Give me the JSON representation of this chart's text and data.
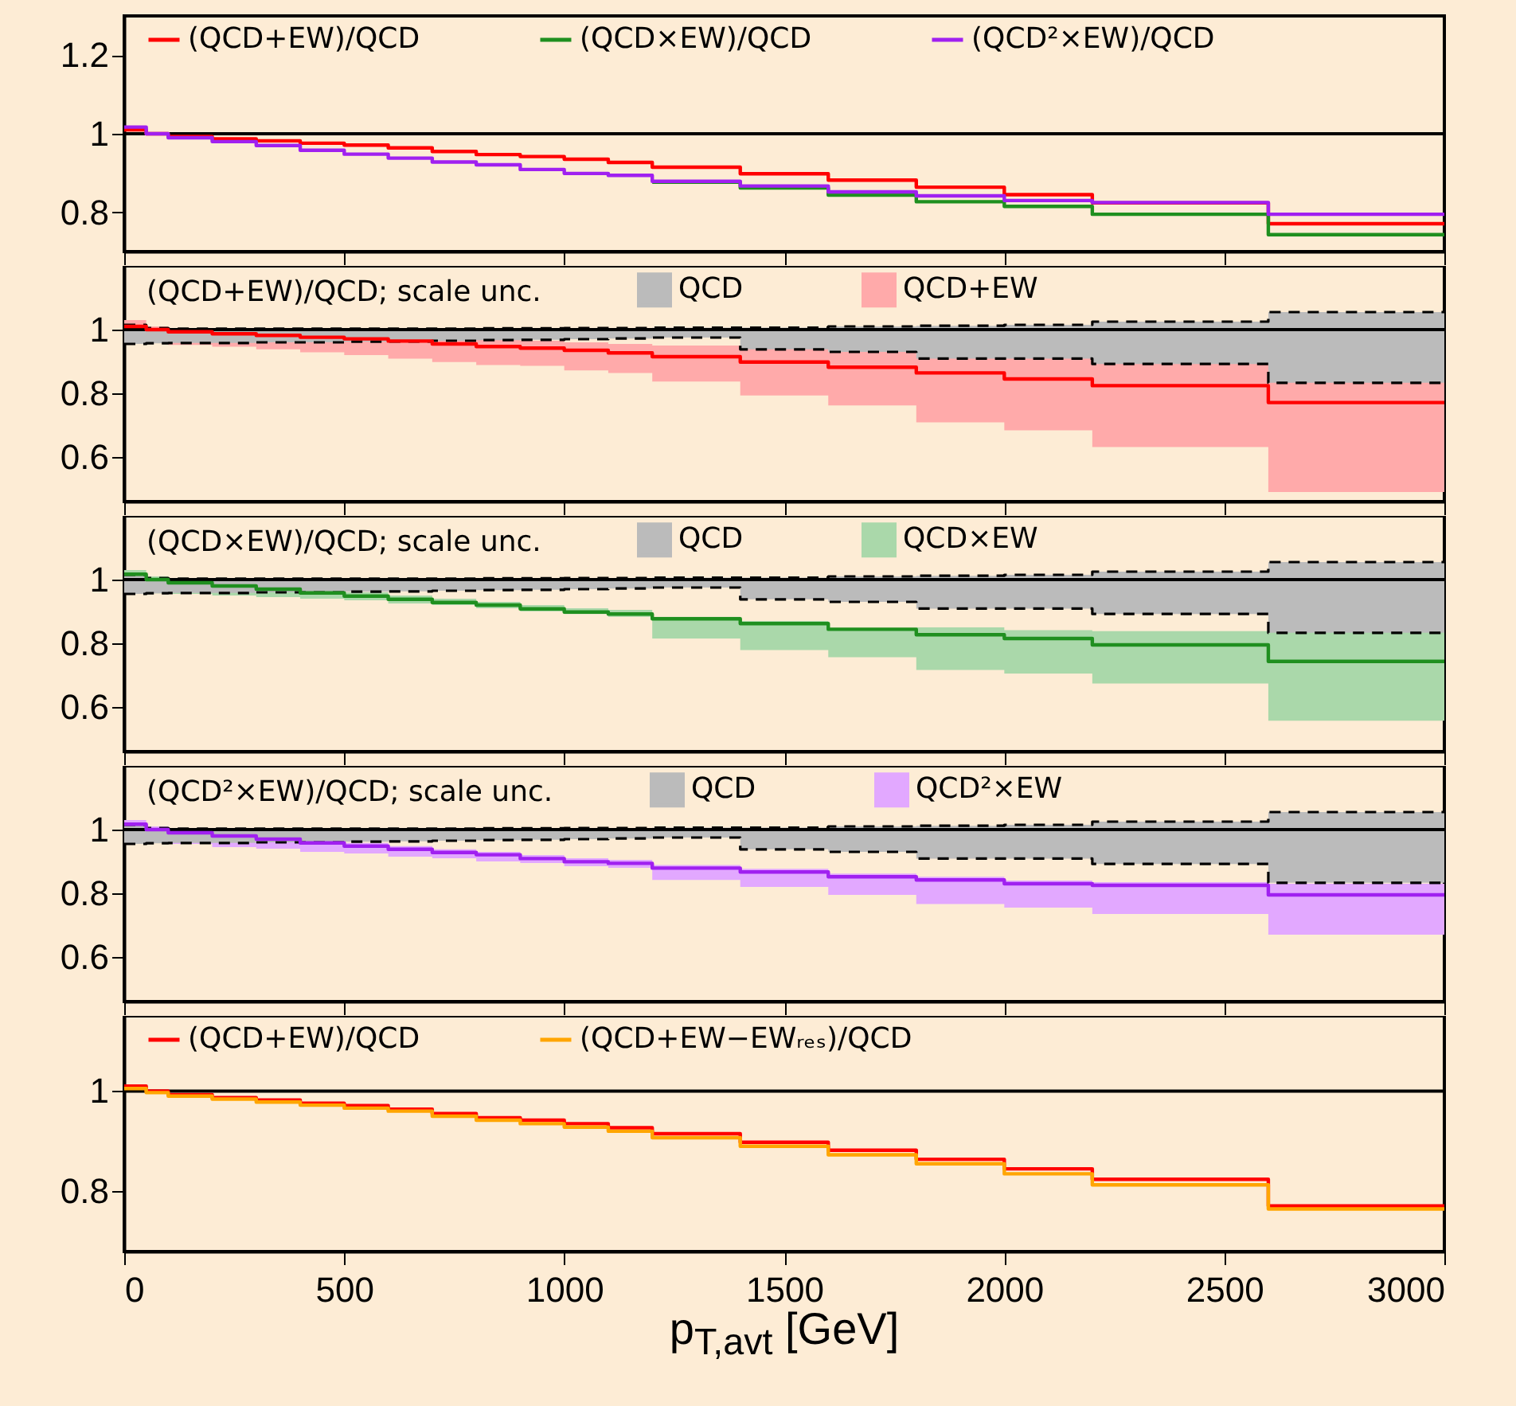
{
  "chart_data": [
    {
      "type": "step",
      "x": [
        0,
        50,
        100,
        200,
        300,
        400,
        500,
        600,
        700,
        800,
        900,
        1000,
        1100,
        1200,
        1400,
        1600,
        1800,
        2000,
        2200,
        2600,
        3000
      ],
      "xlim": [
        0,
        3000
      ],
      "xticks": [
        0,
        500,
        1000,
        1500,
        2000,
        2500,
        3000
      ],
      "ylim": [
        0.7,
        1.3
      ],
      "yticks": [
        0.8,
        1,
        1.2
      ],
      "tick_labels": "y",
      "legend": "top",
      "ref_lines": [
        {
          "axis": "y",
          "value": 1,
          "color": "#000000"
        }
      ],
      "series": [
        {
          "name": "(QCD+EW)/QCD",
          "color": "#ff0000",
          "values": [
            1.01,
            1.0,
            0.993,
            0.987,
            0.982,
            0.976,
            0.971,
            0.964,
            0.955,
            0.947,
            0.942,
            0.935,
            0.927,
            0.915,
            0.898,
            0.882,
            0.864,
            0.845,
            0.824,
            0.771,
            0.771
          ]
        },
        {
          "name": "(QCD×EW)/QCD",
          "color": "#1f8f1f",
          "values": [
            null,
            null,
            null,
            null,
            null,
            null,
            null,
            null,
            null,
            null,
            null,
            null,
            null,
            0.877,
            0.862,
            0.844,
            0.827,
            0.815,
            0.795,
            0.743,
            0.743
          ]
        },
        {
          "name": "(QCD²×EW)/QCD",
          "color": "#a020f0",
          "values": [
            1.017,
            1.0,
            0.99,
            0.98,
            0.97,
            0.958,
            0.948,
            0.938,
            0.928,
            0.921,
            0.909,
            0.899,
            0.894,
            0.879,
            0.867,
            0.852,
            0.842,
            0.83,
            0.825,
            0.795,
            0.795
          ]
        }
      ]
    },
    {
      "type": "step",
      "x": [
        0,
        50,
        100,
        200,
        300,
        400,
        500,
        600,
        700,
        800,
        900,
        1000,
        1100,
        1200,
        1400,
        1600,
        1800,
        2000,
        2200,
        2600,
        3000
      ],
      "xlim": [
        0,
        3000
      ],
      "xticks": [
        0,
        500,
        1000,
        1500,
        2000,
        2500,
        3000
      ],
      "ylim": [
        0.46,
        1.2
      ],
      "yticks": [
        0.6,
        0.8,
        1
      ],
      "tick_labels": "y",
      "legend": "top",
      "legend_title": "(QCD+EW)/QCD; scale unc.",
      "ref_lines": [
        {
          "axis": "y",
          "value": 1,
          "color": "#000000"
        }
      ],
      "series": [
        {
          "name": "QCD",
          "color": "#bbbbbb",
          "values": [
            null,
            null,
            null,
            null,
            null,
            null,
            null,
            null,
            null,
            null,
            null,
            null,
            null,
            null,
            null,
            null,
            null,
            null,
            null,
            null,
            null
          ],
          "lower": [
            0.955,
            0.957,
            0.958,
            0.958,
            0.96,
            0.96,
            0.962,
            0.963,
            0.965,
            0.967,
            0.968,
            0.97,
            0.972,
            0.975,
            0.938,
            0.93,
            0.909,
            0.909,
            0.892,
            0.833,
            0.833
          ],
          "upper": [
            1.015,
            1.005,
            1.003,
            1.003,
            1.003,
            1.003,
            1.003,
            1.003,
            1.003,
            1.004,
            1.004,
            1.005,
            1.005,
            1.006,
            1.006,
            1.01,
            1.012,
            1.015,
            1.025,
            1.055,
            1.055
          ]
        },
        {
          "name": "QCD+EW",
          "color": "#ffaaaa",
          "values": [
            null,
            null,
            null,
            null,
            null,
            null,
            null,
            null,
            null,
            null,
            null,
            null,
            null,
            null,
            null,
            null,
            null,
            null,
            null,
            null,
            null
          ],
          "lower": [
            0.963,
            0.96,
            0.952,
            0.946,
            0.938,
            0.929,
            0.92,
            0.909,
            0.898,
            0.889,
            0.886,
            0.872,
            0.864,
            0.837,
            0.793,
            0.762,
            0.709,
            0.684,
            0.631,
            0.49,
            0.49
          ],
          "upper": [
            1.03,
            1.01,
            1.0,
            0.995,
            0.99,
            0.99,
            0.985,
            0.98,
            0.975,
            0.97,
            0.965,
            0.96,
            0.955,
            0.95,
            0.94,
            0.93,
            0.92,
            0.91,
            0.9,
            0.9,
            0.9
          ]
        },
        {
          "color": "#000000",
          "line_style": "dashed",
          "values": [
            0.955,
            0.957,
            0.958,
            0.958,
            0.96,
            0.96,
            0.962,
            0.963,
            0.965,
            0.967,
            0.968,
            0.97,
            0.972,
            0.975,
            0.938,
            0.93,
            0.909,
            0.909,
            0.892,
            0.833,
            0.833
          ]
        },
        {
          "color": "#000000",
          "line_style": "dashed",
          "values": [
            1.015,
            1.005,
            1.003,
            1.003,
            1.003,
            1.003,
            1.003,
            1.003,
            1.003,
            1.004,
            1.004,
            1.005,
            1.005,
            1.006,
            1.006,
            1.01,
            1.012,
            1.015,
            1.025,
            1.055,
            1.055
          ]
        },
        {
          "color": "#ff0000",
          "values": [
            1.01,
            1.0,
            0.993,
            0.987,
            0.982,
            0.976,
            0.971,
            0.964,
            0.955,
            0.947,
            0.942,
            0.935,
            0.927,
            0.915,
            0.898,
            0.882,
            0.864,
            0.845,
            0.824,
            0.771,
            0.771
          ]
        }
      ]
    },
    {
      "type": "step",
      "x": [
        0,
        50,
        100,
        200,
        300,
        400,
        500,
        600,
        700,
        800,
        900,
        1000,
        1100,
        1200,
        1400,
        1600,
        1800,
        2000,
        2200,
        2600,
        3000
      ],
      "xlim": [
        0,
        3000
      ],
      "xticks": [
        0,
        500,
        1000,
        1500,
        2000,
        2500,
        3000
      ],
      "ylim": [
        0.46,
        1.2
      ],
      "yticks": [
        0.6,
        0.8,
        1
      ],
      "tick_labels": "y",
      "legend": "top",
      "legend_title": "(QCD×EW)/QCD; scale unc.",
      "ref_lines": [
        {
          "axis": "y",
          "value": 1,
          "color": "#000000"
        }
      ],
      "series": [
        {
          "name": "QCD",
          "color": "#bbbbbb",
          "values": [
            null,
            null,
            null,
            null,
            null,
            null,
            null,
            null,
            null,
            null,
            null,
            null,
            null,
            null,
            null,
            null,
            null,
            null,
            null,
            null,
            null
          ],
          "lower": [
            0.955,
            0.957,
            0.958,
            0.958,
            0.96,
            0.96,
            0.962,
            0.963,
            0.965,
            0.967,
            0.968,
            0.97,
            0.972,
            0.975,
            0.938,
            0.93,
            0.909,
            0.909,
            0.892,
            0.833,
            0.833
          ],
          "upper": [
            1.015,
            1.005,
            1.003,
            1.003,
            1.003,
            1.003,
            1.003,
            1.003,
            1.003,
            1.004,
            1.004,
            1.005,
            1.005,
            1.006,
            1.006,
            1.01,
            1.012,
            1.015,
            1.025,
            1.055,
            1.055
          ]
        },
        {
          "name": "QCD×EW",
          "color": "#aad8aa",
          "values": [
            null,
            null,
            null,
            null,
            null,
            null,
            null,
            null,
            null,
            null,
            null,
            null,
            null,
            null,
            null,
            null,
            null,
            null,
            null,
            null,
            null
          ],
          "lower": [
            0.96,
            0.957,
            0.955,
            0.95,
            0.945,
            0.94,
            0.935,
            0.925,
            0.92,
            0.91,
            0.9,
            0.892,
            0.883,
            0.815,
            0.779,
            0.756,
            0.716,
            0.705,
            0.674,
            0.557,
            0.557
          ],
          "upper": [
            1.03,
            1.01,
            1.0,
            0.99,
            0.98,
            0.97,
            0.96,
            0.95,
            0.94,
            0.93,
            0.92,
            0.91,
            0.905,
            0.883,
            0.87,
            0.847,
            0.85,
            0.841,
            0.838,
            0.836,
            0.836
          ]
        },
        {
          "color": "#000000",
          "line_style": "dashed",
          "values": [
            0.955,
            0.957,
            0.958,
            0.958,
            0.96,
            0.96,
            0.962,
            0.963,
            0.965,
            0.967,
            0.968,
            0.97,
            0.972,
            0.975,
            0.938,
            0.93,
            0.909,
            0.909,
            0.892,
            0.833,
            0.833
          ]
        },
        {
          "color": "#000000",
          "line_style": "dashed",
          "values": [
            1.015,
            1.005,
            1.003,
            1.003,
            1.003,
            1.003,
            1.003,
            1.003,
            1.003,
            1.004,
            1.004,
            1.005,
            1.005,
            1.006,
            1.006,
            1.01,
            1.012,
            1.015,
            1.025,
            1.055,
            1.055
          ]
        },
        {
          "color": "#1f8f1f",
          "values": [
            1.017,
            1.0,
            0.99,
            0.98,
            0.97,
            0.958,
            0.948,
            0.938,
            0.928,
            0.92,
            0.908,
            0.898,
            0.892,
            0.877,
            0.862,
            0.844,
            0.827,
            0.815,
            0.795,
            0.743,
            0.743
          ]
        }
      ]
    },
    {
      "type": "step",
      "x": [
        0,
        50,
        100,
        200,
        300,
        400,
        500,
        600,
        700,
        800,
        900,
        1000,
        1100,
        1200,
        1400,
        1600,
        1800,
        2000,
        2200,
        2600,
        3000
      ],
      "xlim": [
        0,
        3000
      ],
      "xticks": [
        0,
        500,
        1000,
        1500,
        2000,
        2500,
        3000
      ],
      "ylim": [
        0.46,
        1.2
      ],
      "yticks": [
        0.6,
        0.8,
        1
      ],
      "tick_labels": "y",
      "legend": "top",
      "legend_title": "(QCD²×EW)/QCD; scale unc.",
      "ref_lines": [
        {
          "axis": "y",
          "value": 1,
          "color": "#000000"
        }
      ],
      "series": [
        {
          "name": "QCD",
          "color": "#bbbbbb",
          "values": [
            null,
            null,
            null,
            null,
            null,
            null,
            null,
            null,
            null,
            null,
            null,
            null,
            null,
            null,
            null,
            null,
            null,
            null,
            null,
            null,
            null
          ],
          "lower": [
            0.955,
            0.957,
            0.958,
            0.958,
            0.96,
            0.96,
            0.962,
            0.963,
            0.965,
            0.967,
            0.968,
            0.97,
            0.972,
            0.975,
            0.938,
            0.93,
            0.909,
            0.909,
            0.892,
            0.833,
            0.833
          ],
          "upper": [
            1.015,
            1.005,
            1.003,
            1.003,
            1.003,
            1.003,
            1.003,
            1.003,
            1.003,
            1.004,
            1.004,
            1.005,
            1.005,
            1.006,
            1.006,
            1.01,
            1.012,
            1.015,
            1.025,
            1.055,
            1.055
          ]
        },
        {
          "name": "QCD²×EW",
          "color": "#e2a8ff",
          "values": [
            null,
            null,
            null,
            null,
            null,
            null,
            null,
            null,
            null,
            null,
            null,
            null,
            null,
            null,
            null,
            null,
            null,
            null,
            null,
            null,
            null
          ],
          "lower": [
            0.97,
            0.96,
            0.955,
            0.945,
            0.94,
            0.93,
            0.925,
            0.915,
            0.91,
            0.9,
            0.895,
            0.885,
            0.88,
            0.842,
            0.82,
            0.795,
            0.766,
            0.755,
            0.735,
            0.67,
            0.67
          ],
          "upper": [
            1.03,
            1.01,
            1.0,
            0.99,
            0.98,
            0.968,
            0.958,
            0.948,
            0.938,
            0.93,
            0.92,
            0.91,
            0.905,
            0.889,
            0.877,
            0.862,
            0.852,
            0.84,
            0.835,
            0.83,
            0.83
          ]
        },
        {
          "color": "#000000",
          "line_style": "dashed",
          "values": [
            0.955,
            0.957,
            0.958,
            0.958,
            0.96,
            0.96,
            0.962,
            0.963,
            0.965,
            0.967,
            0.968,
            0.97,
            0.972,
            0.975,
            0.938,
            0.93,
            0.909,
            0.909,
            0.892,
            0.833,
            0.833
          ]
        },
        {
          "color": "#000000",
          "line_style": "dashed",
          "values": [
            1.015,
            1.005,
            1.003,
            1.003,
            1.003,
            1.003,
            1.003,
            1.003,
            1.003,
            1.004,
            1.004,
            1.005,
            1.005,
            1.006,
            1.006,
            1.01,
            1.012,
            1.015,
            1.025,
            1.055,
            1.055
          ]
        },
        {
          "color": "#a020f0",
          "values": [
            1.017,
            1.0,
            0.99,
            0.98,
            0.97,
            0.958,
            0.948,
            0.938,
            0.928,
            0.921,
            0.909,
            0.899,
            0.894,
            0.879,
            0.867,
            0.852,
            0.842,
            0.83,
            0.825,
            0.795,
            0.795
          ]
        }
      ]
    },
    {
      "type": "step",
      "x": [
        0,
        50,
        100,
        200,
        300,
        400,
        500,
        600,
        700,
        800,
        900,
        1000,
        1100,
        1200,
        1400,
        1600,
        1800,
        2000,
        2200,
        2600,
        3000
      ],
      "xlim": [
        0,
        3000
      ],
      "xticks": [
        0,
        500,
        1000,
        1500,
        2000,
        2500,
        3000
      ],
      "ylim": [
        0.68,
        1.15
      ],
      "yticks": [
        0.8,
        1
      ],
      "legend": "top",
      "xlabel": "p$_{T,avt}$ [GeV]",
      "ref_lines": [
        {
          "axis": "y",
          "value": 1,
          "color": "#000000"
        }
      ],
      "series": [
        {
          "name": "(QCD+EW)/QCD",
          "color": "#ff0000",
          "values": [
            1.01,
            1.0,
            0.993,
            0.987,
            0.982,
            0.976,
            0.971,
            0.964,
            0.955,
            0.947,
            0.942,
            0.935,
            0.927,
            0.915,
            0.898,
            0.882,
            0.864,
            0.845,
            0.824,
            0.771,
            0.771
          ]
        },
        {
          "name": "(QCD+EW−EWᵣₑₛ)/QCD",
          "color": "#ffa500",
          "values": [
            1.005,
            0.997,
            0.99,
            0.984,
            0.978,
            0.972,
            0.966,
            0.96,
            0.95,
            0.942,
            0.935,
            0.928,
            0.92,
            0.907,
            0.89,
            0.873,
            0.855,
            0.835,
            0.813,
            0.765,
            0.765
          ]
        }
      ]
    }
  ]
}
